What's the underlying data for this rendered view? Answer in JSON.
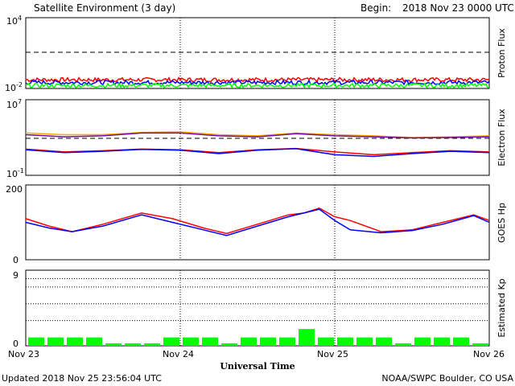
{
  "header": {
    "title": "Satellite Environment (3 day)",
    "begin_label": "Begin:",
    "begin_value": "2018 Nov 23 0000 UTC"
  },
  "footer": {
    "updated": "Updated 2018 Nov 25 23:56:04 UTC",
    "credit": "NOAA/SWPC Boulder, CO USA"
  },
  "colors": {
    "red": "#ff0000",
    "blue": "#0000ff",
    "green": "#00ff00",
    "orange": "#ffa500",
    "purple": "#6a0dad",
    "kp_bar": "#00ff00"
  },
  "chart_data": [
    {
      "type": "line",
      "panel": "proton",
      "ylabel": "Proton Flux",
      "yscale": "log",
      "ylim": [
        0.01,
        10000
      ],
      "ytick_base": "10",
      "ytick_exps": [
        "4",
        "-2"
      ],
      "threshold": 10,
      "x_days": [
        0,
        3
      ],
      "series": [
        {
          "color": "red",
          "level": 0.055
        },
        {
          "color": "blue",
          "level": 0.032
        },
        {
          "color": "green",
          "level": 0.018
        }
      ]
    },
    {
      "type": "line",
      "panel": "electron",
      "ylabel": "Electron Flux",
      "yscale": "log",
      "ylim": [
        0.1,
        10000000
      ],
      "ytick_base": "10",
      "ytick_exps": [
        "7",
        "-1"
      ],
      "threshold": 1000,
      "x": [
        0,
        0.25,
        0.5,
        0.75,
        1.0,
        1.25,
        1.5,
        1.75,
        2.0,
        2.25,
        2.5,
        2.75,
        3.0
      ],
      "series": [
        {
          "color": "orange",
          "values": [
            3000,
            2000,
            2000,
            3500,
            4000,
            2000,
            1500,
            3000,
            2000,
            1500,
            1000,
            1200,
            1500
          ]
        },
        {
          "color": "purple",
          "values": [
            2000,
            1200,
            1500,
            3000,
            3000,
            1500,
            1200,
            2500,
            1500,
            1200,
            900,
            1000,
            1200
          ]
        },
        {
          "color": "red",
          "values": [
            60,
            30,
            40,
            60,
            50,
            25,
            50,
            70,
            30,
            15,
            25,
            40,
            30
          ]
        },
        {
          "color": "blue",
          "values": [
            50,
            25,
            35,
            55,
            45,
            20,
            45,
            65,
            15,
            10,
            20,
            35,
            25
          ]
        }
      ]
    },
    {
      "type": "line",
      "panel": "goes_hp",
      "ylabel": "GOES Hp",
      "ylim": [
        0,
        200
      ],
      "yticks": [
        "200",
        "0"
      ],
      "x": [
        0,
        0.15,
        0.3,
        0.5,
        0.75,
        0.95,
        1.15,
        1.3,
        1.5,
        1.7,
        1.8,
        1.9,
        2.0,
        2.1,
        2.3,
        2.5,
        2.7,
        2.9,
        3.0
      ],
      "series": [
        {
          "color": "red",
          "values": [
            110,
            90,
            75,
            95,
            125,
            110,
            85,
            70,
            95,
            120,
            125,
            138,
            115,
            105,
            75,
            80,
            100,
            120,
            105
          ]
        },
        {
          "color": "blue",
          "values": [
            100,
            85,
            75,
            90,
            120,
            100,
            80,
            65,
            90,
            115,
            125,
            135,
            105,
            80,
            72,
            78,
            95,
            118,
            100
          ]
        }
      ]
    },
    {
      "type": "bar",
      "panel": "kp",
      "ylabel": "Estimated Kp",
      "ylim": [
        0,
        9
      ],
      "yticks": [
        "9",
        "0"
      ],
      "grid_levels": [
        3,
        5,
        7,
        8
      ],
      "values": [
        1,
        1,
        1,
        1,
        0.3,
        0.3,
        0.3,
        1,
        1,
        1,
        0.3,
        1,
        1,
        1,
        2,
        1,
        1,
        1,
        1,
        0.3,
        1,
        1,
        1,
        0.3
      ]
    }
  ],
  "xaxis": {
    "ticks": [
      "Nov 23",
      "Nov 24",
      "Nov 25",
      "Nov 26"
    ],
    "label": "Universal Time"
  }
}
